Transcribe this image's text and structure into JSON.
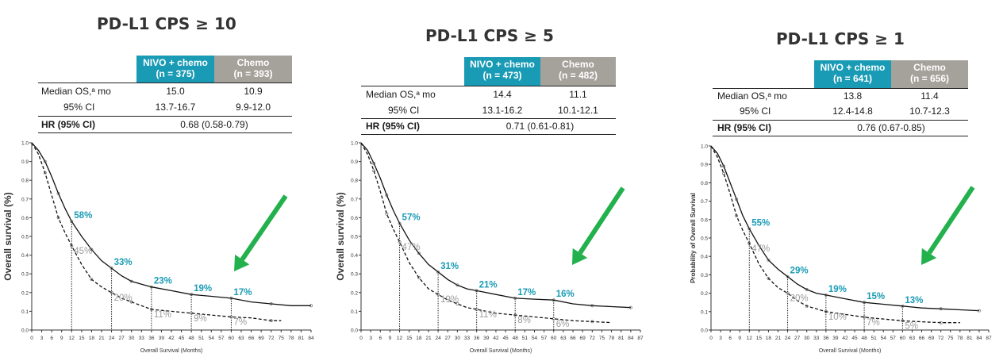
{
  "colors": {
    "nivo": "#1a9bb5",
    "chemo": "#a5a19b",
    "arrow": "#22b14c",
    "label_nivo": "#1a9bb5",
    "label_chemo": "#9b9b9b"
  },
  "panels": [
    {
      "title": "PD-L1 CPS ≥ 10",
      "table": {
        "nivo_header": [
          "NIVO + chemo",
          "(n = 375)"
        ],
        "chemo_header": [
          "Chemo",
          "(n = 393)"
        ],
        "median_label": "Median OS,ᵃ mo",
        "median_nivo": "15.0",
        "median_chemo": "10.9",
        "ci_label": "95% CI",
        "ci_nivo": "13.7-16.7",
        "ci_chemo": "9.9-12.0",
        "hr_label": "HR (95% CI)",
        "hr_value": "0.68 (0.58-0.79)"
      },
      "chart_data": {
        "type": "line",
        "ylabel": "Overall survival (%)",
        "xlabel": "Overall Survival (Months)",
        "xlim": [
          0,
          84
        ],
        "ylim": [
          0,
          1
        ],
        "x_ticks": [
          0,
          3,
          6,
          9,
          12,
          15,
          18,
          21,
          24,
          27,
          30,
          33,
          36,
          39,
          42,
          45,
          48,
          51,
          54,
          57,
          60,
          63,
          66,
          69,
          72,
          75,
          78,
          81,
          84
        ],
        "y_ticks": [
          "0.0",
          "0.1",
          "0.2",
          "0.3",
          "0.4",
          "0.5",
          "0.6",
          "0.7",
          "0.8",
          "0.9",
          "1.0"
        ],
        "series": [
          {
            "style": "solid",
            "x": [
              0,
              2,
              4,
              6,
              8,
              10,
              12,
              15,
              18,
              21,
              24,
              27,
              30,
              33,
              36,
              42,
              48,
              54,
              60,
              66,
              72,
              78,
              84
            ],
            "y": [
              1.0,
              0.96,
              0.9,
              0.82,
              0.73,
              0.65,
              0.58,
              0.5,
              0.43,
              0.37,
              0.33,
              0.29,
              0.26,
              0.245,
              0.23,
              0.21,
              0.19,
              0.18,
              0.17,
              0.15,
              0.14,
              0.13,
              0.13
            ]
          },
          {
            "style": "dashed",
            "x": [
              0,
              2,
              4,
              6,
              8,
              10,
              12,
              15,
              18,
              21,
              24,
              27,
              30,
              33,
              36,
              42,
              48,
              54,
              60,
              66,
              72,
              75
            ],
            "y": [
              1.0,
              0.94,
              0.84,
              0.72,
              0.6,
              0.52,
              0.45,
              0.35,
              0.27,
              0.23,
              0.2,
              0.17,
              0.15,
              0.13,
              0.11,
              0.1,
              0.09,
              0.08,
              0.07,
              0.065,
              0.05,
              0.05
            ]
          }
        ],
        "milestones": [
          {
            "x": 12,
            "nivo": 0.58,
            "chemo": 0.45,
            "nivo_label": "58%",
            "chemo_label": "45%"
          },
          {
            "x": 24,
            "nivo": 0.33,
            "chemo": 0.2,
            "nivo_label": "33%",
            "chemo_label": "20%"
          },
          {
            "x": 36,
            "nivo": 0.23,
            "chemo": 0.11,
            "nivo_label": "23%",
            "chemo_label": "11%"
          },
          {
            "x": 48,
            "nivo": 0.19,
            "chemo": 0.09,
            "nivo_label": "19%",
            "chemo_label": "9%"
          },
          {
            "x": 60,
            "nivo": 0.17,
            "chemo": 0.07,
            "nivo_label": "17%",
            "chemo_label": "7%"
          }
        ]
      }
    },
    {
      "title": "PD-L1 CPS ≥ 5",
      "table": {
        "nivo_header": [
          "NIVO + chemo",
          "(n = 473)"
        ],
        "chemo_header": [
          "Chemo",
          "(n = 482)"
        ],
        "median_label": "Median OS,ᵃ mo",
        "median_nivo": "14.4",
        "median_chemo": "11.1",
        "ci_label": "95% CI",
        "ci_nivo": "13.1-16.2",
        "ci_chemo": "10.1-12.1",
        "hr_label": "HR (95% CI)",
        "hr_value": "0.71 (0.61-0.81)"
      },
      "chart_data": {
        "type": "line",
        "ylabel": "Overall survival (%)",
        "xlabel": "Overall Survival (Months)",
        "xlim": [
          0,
          87
        ],
        "ylim": [
          0,
          1
        ],
        "x_ticks": [
          0,
          3,
          6,
          9,
          12,
          15,
          18,
          21,
          24,
          27,
          30,
          33,
          36,
          39,
          42,
          45,
          48,
          51,
          54,
          57,
          60,
          63,
          66,
          69,
          72,
          75,
          78,
          81,
          84,
          87
        ],
        "y_ticks": [
          "0.0",
          "0.1",
          "0.2",
          "0.3",
          "0.4",
          "0.5",
          "0.6",
          "0.7",
          "0.8",
          "0.9",
          "1.0"
        ],
        "series": [
          {
            "style": "solid",
            "x": [
              0,
              2,
              4,
              6,
              8,
              10,
              12,
              15,
              18,
              21,
              24,
              27,
              30,
              33,
              36,
              42,
              48,
              54,
              60,
              66,
              72,
              78,
              84
            ],
            "y": [
              1.0,
              0.96,
              0.89,
              0.81,
              0.72,
              0.64,
              0.57,
              0.48,
              0.41,
              0.35,
              0.31,
              0.27,
              0.24,
              0.22,
              0.21,
              0.19,
              0.17,
              0.165,
              0.16,
              0.14,
              0.13,
              0.125,
              0.12
            ]
          },
          {
            "style": "dashed",
            "x": [
              0,
              2,
              4,
              6,
              8,
              10,
              12,
              15,
              18,
              21,
              24,
              27,
              30,
              33,
              36,
              42,
              48,
              54,
              60,
              66,
              72,
              78
            ],
            "y": [
              1.0,
              0.94,
              0.85,
              0.74,
              0.62,
              0.54,
              0.47,
              0.36,
              0.28,
              0.22,
              0.19,
              0.16,
              0.14,
              0.12,
              0.11,
              0.09,
              0.08,
              0.07,
              0.06,
              0.05,
              0.045,
              0.04
            ]
          }
        ],
        "milestones": [
          {
            "x": 12,
            "nivo": 0.57,
            "chemo": 0.47,
            "nivo_label": "57%",
            "chemo_label": "47%"
          },
          {
            "x": 24,
            "nivo": 0.31,
            "chemo": 0.19,
            "nivo_label": "31%",
            "chemo_label": "19%"
          },
          {
            "x": 36,
            "nivo": 0.21,
            "chemo": 0.11,
            "nivo_label": "21%",
            "chemo_label": "11%"
          },
          {
            "x": 48,
            "nivo": 0.17,
            "chemo": 0.08,
            "nivo_label": "17%",
            "chemo_label": "8%"
          },
          {
            "x": 60,
            "nivo": 0.16,
            "chemo": 0.06,
            "nivo_label": "16%",
            "chemo_label": "6%"
          }
        ]
      }
    },
    {
      "title": "PD-L1 CPS ≥ 1",
      "table": {
        "nivo_header": [
          "NIVO + chemo",
          "(n = 641)"
        ],
        "chemo_header": [
          "Chemo",
          "(n = 656)"
        ],
        "median_label": "Median OS,ᵃ mo",
        "median_nivo": "13.8",
        "median_chemo": "11.4",
        "ci_label": "95% CI",
        "ci_nivo": "12.4-14.8",
        "ci_chemo": "10.7-12.3",
        "hr_label": "HR (95% CI)",
        "hr_value": "0.76 (0.67-0.85)"
      },
      "chart_data": {
        "type": "line",
        "ylabel": "Probability of Overall Survival",
        "xlabel": "Overall Survival (Months)",
        "xlim": [
          0,
          87
        ],
        "ylim": [
          0,
          1
        ],
        "x_ticks": [
          0,
          3,
          6,
          9,
          12,
          15,
          18,
          21,
          24,
          27,
          30,
          33,
          36,
          39,
          42,
          45,
          48,
          51,
          54,
          57,
          60,
          63,
          66,
          69,
          72,
          75,
          78,
          81,
          84,
          87
        ],
        "y_ticks": [
          "0.0",
          "0.1",
          "0.2",
          "0.3",
          "0.4",
          "0.5",
          "0.6",
          "0.7",
          "0.8",
          "0.9",
          "1.0"
        ],
        "series": [
          {
            "style": "solid",
            "x": [
              0,
              2,
              4,
              6,
              8,
              10,
              12,
              15,
              18,
              21,
              24,
              27,
              30,
              33,
              36,
              42,
              48,
              54,
              60,
              66,
              72,
              78,
              84
            ],
            "y": [
              1.0,
              0.96,
              0.89,
              0.8,
              0.71,
              0.62,
              0.55,
              0.46,
              0.38,
              0.33,
              0.29,
              0.25,
              0.22,
              0.2,
              0.19,
              0.17,
              0.15,
              0.14,
              0.13,
              0.12,
              0.115,
              0.11,
              0.105
            ]
          },
          {
            "style": "dashed",
            "x": [
              0,
              2,
              4,
              6,
              8,
              10,
              12,
              15,
              18,
              21,
              24,
              27,
              30,
              33,
              36,
              42,
              48,
              54,
              60,
              66,
              72,
              78
            ],
            "y": [
              1.0,
              0.94,
              0.85,
              0.74,
              0.62,
              0.54,
              0.47,
              0.36,
              0.28,
              0.23,
              0.2,
              0.16,
              0.13,
              0.115,
              0.1,
              0.085,
              0.07,
              0.06,
              0.05,
              0.045,
              0.04,
              0.04
            ]
          }
        ],
        "milestones": [
          {
            "x": 12,
            "nivo": 0.55,
            "chemo": 0.47,
            "nivo_label": "55%",
            "chemo_label": "47%"
          },
          {
            "x": 24,
            "nivo": 0.29,
            "chemo": 0.2,
            "nivo_label": "29%",
            "chemo_label": "20%"
          },
          {
            "x": 36,
            "nivo": 0.19,
            "chemo": 0.1,
            "nivo_label": "19%",
            "chemo_label": "10%"
          },
          {
            "x": 48,
            "nivo": 0.15,
            "chemo": 0.07,
            "nivo_label": "15%",
            "chemo_label": "7%"
          },
          {
            "x": 60,
            "nivo": 0.13,
            "chemo": 0.05,
            "nivo_label": "13%",
            "chemo_label": "5%"
          }
        ]
      }
    }
  ]
}
